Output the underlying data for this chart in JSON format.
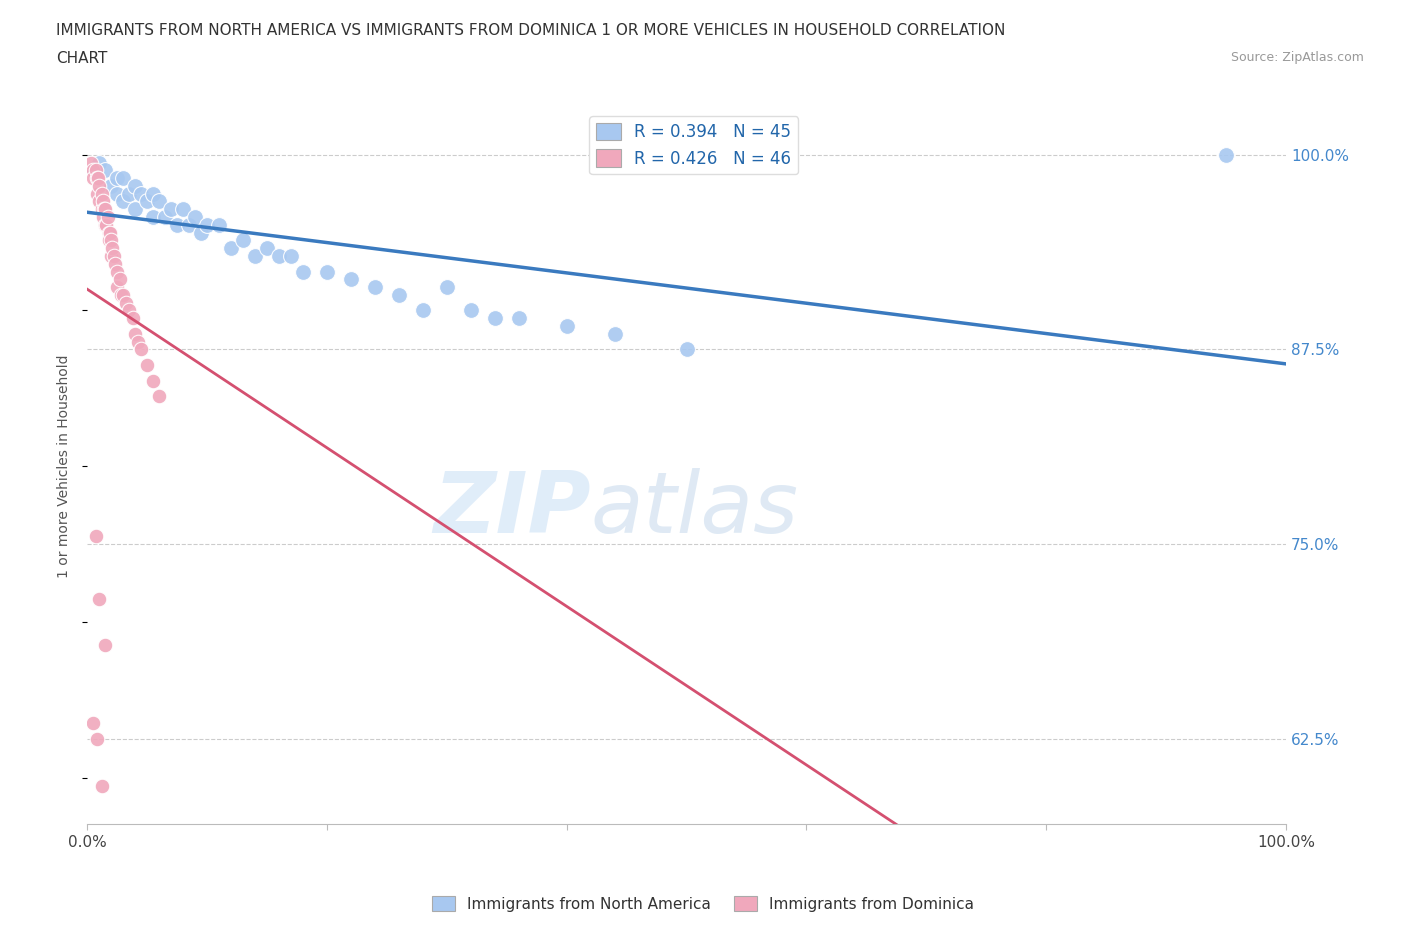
{
  "title_line1": "IMMIGRANTS FROM NORTH AMERICA VS IMMIGRANTS FROM DOMINICA 1 OR MORE VEHICLES IN HOUSEHOLD CORRELATION",
  "title_line2": "CHART",
  "source": "Source: ZipAtlas.com",
  "ylabel": "1 or more Vehicles in Household",
  "xlim": [
    0.0,
    1.0
  ],
  "ylim": [
    0.57,
    1.03
  ],
  "yticks": [
    0.625,
    0.75,
    0.875,
    1.0
  ],
  "yticklabels": [
    "62.5%",
    "75.0%",
    "87.5%",
    "100.0%"
  ],
  "xticks": [
    0.0,
    0.2,
    0.4,
    0.6,
    0.8,
    1.0
  ],
  "xticklabels": [
    "0.0%",
    "",
    "",
    "",
    "",
    "100.0%"
  ],
  "watermark_zip": "ZIP",
  "watermark_atlas": "atlas",
  "blue_color": "#a8c8f0",
  "pink_color": "#f0a8bc",
  "blue_line_color": "#3a7abf",
  "pink_line_color": "#d45070",
  "legend_R_blue": "R = 0.394",
  "legend_N_blue": "N = 45",
  "legend_R_pink": "R = 0.426",
  "legend_N_pink": "N = 46",
  "north_america_x": [
    0.005,
    0.01,
    0.015,
    0.02,
    0.025,
    0.025,
    0.03,
    0.03,
    0.035,
    0.04,
    0.04,
    0.045,
    0.05,
    0.055,
    0.055,
    0.06,
    0.065,
    0.07,
    0.075,
    0.08,
    0.085,
    0.09,
    0.095,
    0.1,
    0.11,
    0.12,
    0.13,
    0.14,
    0.15,
    0.16,
    0.17,
    0.18,
    0.2,
    0.22,
    0.24,
    0.26,
    0.28,
    0.3,
    0.32,
    0.34,
    0.36,
    0.4,
    0.44,
    0.5,
    0.95
  ],
  "north_america_y": [
    0.99,
    0.995,
    0.99,
    0.98,
    0.985,
    0.975,
    0.985,
    0.97,
    0.975,
    0.98,
    0.965,
    0.975,
    0.97,
    0.975,
    0.96,
    0.97,
    0.96,
    0.965,
    0.955,
    0.965,
    0.955,
    0.96,
    0.95,
    0.955,
    0.955,
    0.94,
    0.945,
    0.935,
    0.94,
    0.935,
    0.935,
    0.925,
    0.925,
    0.92,
    0.915,
    0.91,
    0.9,
    0.915,
    0.9,
    0.895,
    0.895,
    0.89,
    0.885,
    0.875,
    1.0
  ],
  "dominica_x": [
    0.003,
    0.005,
    0.005,
    0.007,
    0.008,
    0.008,
    0.009,
    0.01,
    0.01,
    0.012,
    0.012,
    0.013,
    0.013,
    0.014,
    0.015,
    0.015,
    0.016,
    0.017,
    0.018,
    0.018,
    0.019,
    0.02,
    0.02,
    0.021,
    0.022,
    0.023,
    0.025,
    0.025,
    0.027,
    0.028,
    0.03,
    0.032,
    0.035,
    0.038,
    0.04,
    0.042,
    0.045,
    0.05,
    0.055,
    0.06,
    0.007,
    0.01,
    0.015,
    0.005,
    0.008,
    0.012
  ],
  "dominica_y": [
    0.995,
    0.99,
    0.985,
    0.99,
    0.985,
    0.975,
    0.985,
    0.98,
    0.97,
    0.975,
    0.965,
    0.97,
    0.96,
    0.965,
    0.965,
    0.955,
    0.955,
    0.96,
    0.95,
    0.945,
    0.95,
    0.945,
    0.935,
    0.94,
    0.935,
    0.93,
    0.925,
    0.915,
    0.92,
    0.91,
    0.91,
    0.905,
    0.9,
    0.895,
    0.885,
    0.88,
    0.875,
    0.865,
    0.855,
    0.845,
    0.755,
    0.715,
    0.685,
    0.635,
    0.625,
    0.595
  ]
}
